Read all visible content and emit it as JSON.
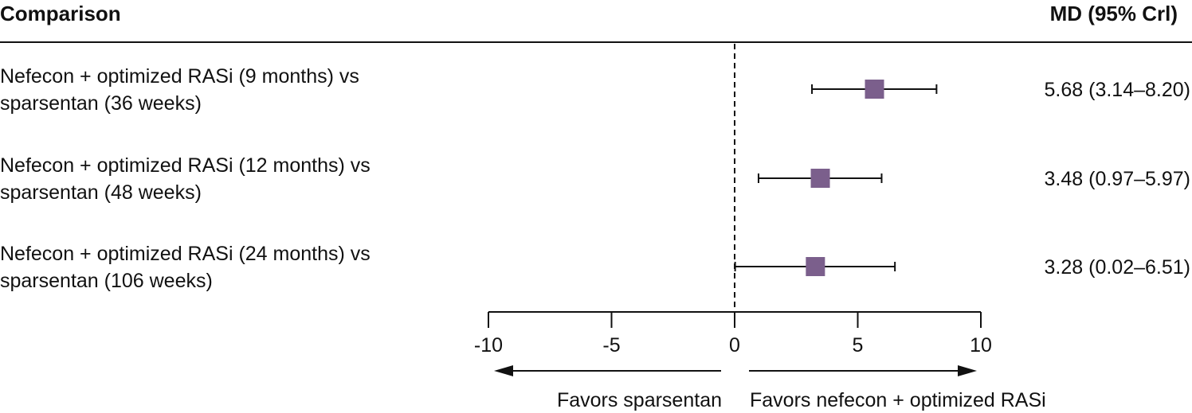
{
  "header": {
    "comparison_label": "Comparison",
    "estimate_label": "MD (95% Crl)"
  },
  "colors": {
    "marker": "#7b5f8c",
    "line": "#111111"
  },
  "chart_data": {
    "type": "forest",
    "xlim": [
      -10,
      10
    ],
    "xticks": [
      "-10",
      "-5",
      "0",
      "5",
      "10"
    ],
    "reference_line": 0,
    "rows": [
      {
        "label_lines": [
          "Nefecon + optimized RASi (9 months) vs",
          "sparsentan (36 weeks)"
        ],
        "estimate": 5.68,
        "lower": 3.14,
        "upper": 8.2,
        "text": "5.68 (3.14–8.20)"
      },
      {
        "label_lines": [
          "Nefecon + optimized RASi (12 months) vs",
          "sparsentan (48 weeks)"
        ],
        "estimate": 3.48,
        "lower": 0.97,
        "upper": 5.97,
        "text": "3.48 (0.97–5.97)"
      },
      {
        "label_lines": [
          "Nefecon + optimized RASi (24 months) vs",
          "sparsentan (106 weeks)"
        ],
        "estimate": 3.28,
        "lower": 0.02,
        "upper": 6.51,
        "text": "3.28 (0.02–6.51)"
      }
    ],
    "favors_left": "Favors sparsentan",
    "favors_right": "Favors nefecon + optimized RASi"
  }
}
